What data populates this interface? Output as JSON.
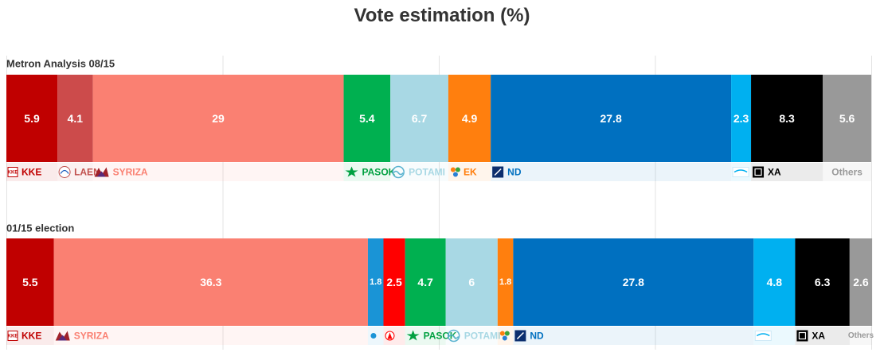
{
  "title": "Vote estimation (%)",
  "chart_data": [
    {
      "type": "bar",
      "orientation": "horizontal-stacked",
      "title": "Metron Analysis 08/15",
      "xlim": [
        0,
        100
      ],
      "segments": [
        {
          "party": "KKE",
          "value": 5.9,
          "color": "#c00000",
          "logo": "kke-logo",
          "label_color": "#c00000",
          "value_text_color": "#ffffff"
        },
        {
          "party": "LAEN",
          "value": 4.1,
          "color": "#cc4b4b",
          "logo": "laen-logo",
          "label_color": "#c0504d",
          "value_text_color": "#ffffff"
        },
        {
          "party": "SYRIZA",
          "value": 29,
          "color": "#fa8072",
          "logo": "syriza-logo",
          "label_color": "#fa8072",
          "value_text_color": "#ffffff"
        },
        {
          "party": "PASOK",
          "value": 5.4,
          "color": "#00b050",
          "logo": "pasok-logo",
          "label_color": "#00a040",
          "value_text_color": "#ffffff"
        },
        {
          "party": "POTAMI",
          "value": 6.7,
          "color": "#a8d8e4",
          "logo": "potami-logo",
          "label_color": "#a8d8e4",
          "value_text_color": "#ffffff"
        },
        {
          "party": "EK",
          "value": 4.9,
          "color": "#ff7f0e",
          "logo": "ek-logo",
          "label_color": "#ff7f0e",
          "value_text_color": "#ffffff"
        },
        {
          "party": "ND",
          "value": 27.8,
          "color": "#0070c0",
          "logo": "nd-logo",
          "label_color": "#0070c0",
          "value_text_color": "#ffffff"
        },
        {
          "party": "",
          "value": 2.3,
          "color": "#00b0f0",
          "logo": "anel-logo",
          "label_color": "#00b0f0",
          "value_text_color": "#ffffff"
        },
        {
          "party": "XA",
          "value": 8.3,
          "color": "#000000",
          "logo": "xa-logo",
          "label_color": "#000000",
          "value_text_color": "#ffffff"
        },
        {
          "party": "Others",
          "value": 5.6,
          "color": "#999999",
          "logo": "",
          "label_color": "#999999",
          "value_text_color": "#ffffff"
        }
      ]
    },
    {
      "type": "bar",
      "orientation": "horizontal-stacked",
      "title": "01/15 election",
      "xlim": [
        0,
        100
      ],
      "segments": [
        {
          "party": "KKE",
          "value": 5.5,
          "color": "#c00000",
          "logo": "kke-logo",
          "label_color": "#c00000",
          "value_text_color": "#ffffff"
        },
        {
          "party": "SYRIZA",
          "value": 36.3,
          "color": "#fa8072",
          "logo": "syriza-logo",
          "label_color": "#fa8072",
          "value_text_color": "#ffffff"
        },
        {
          "party": "",
          "value": 1.8,
          "color": "#1a94d6",
          "logo": "kidiso-logo",
          "label_color": "#1a94d6",
          "value_text_color": "#ffffff"
        },
        {
          "party": "",
          "value": 2.5,
          "color": "#ff0000",
          "logo": "antarsya-logo",
          "label_color": "#ff0000",
          "value_text_color": "#ffffff"
        },
        {
          "party": "PASOK",
          "value": 4.7,
          "color": "#00b050",
          "logo": "pasok-logo",
          "label_color": "#00a040",
          "value_text_color": "#ffffff"
        },
        {
          "party": "POTAMI",
          "value": 6,
          "color": "#a8d8e4",
          "logo": "potami-logo",
          "label_color": "#a8d8e4",
          "value_text_color": "#ffffff"
        },
        {
          "party": "",
          "value": 1.8,
          "color": "#ff7f0e",
          "logo": "ek-logo",
          "label_color": "#ff7f0e",
          "value_text_color": "#ffffff"
        },
        {
          "party": "ND",
          "value": 27.8,
          "color": "#0070c0",
          "logo": "nd-logo",
          "label_color": "#0070c0",
          "value_text_color": "#ffffff"
        },
        {
          "party": "",
          "value": 4.8,
          "color": "#00b0f0",
          "logo": "anel-logo",
          "label_color": "#00b0f0",
          "value_text_color": "#ffffff"
        },
        {
          "party": "XA",
          "value": 6.3,
          "color": "#000000",
          "logo": "xa-logo",
          "label_color": "#000000",
          "value_text_color": "#ffffff"
        },
        {
          "party": "Others",
          "value": 2.6,
          "color": "#999999",
          "logo": "",
          "label_color": "#999999",
          "value_text_color": "#ffffff"
        }
      ]
    }
  ]
}
